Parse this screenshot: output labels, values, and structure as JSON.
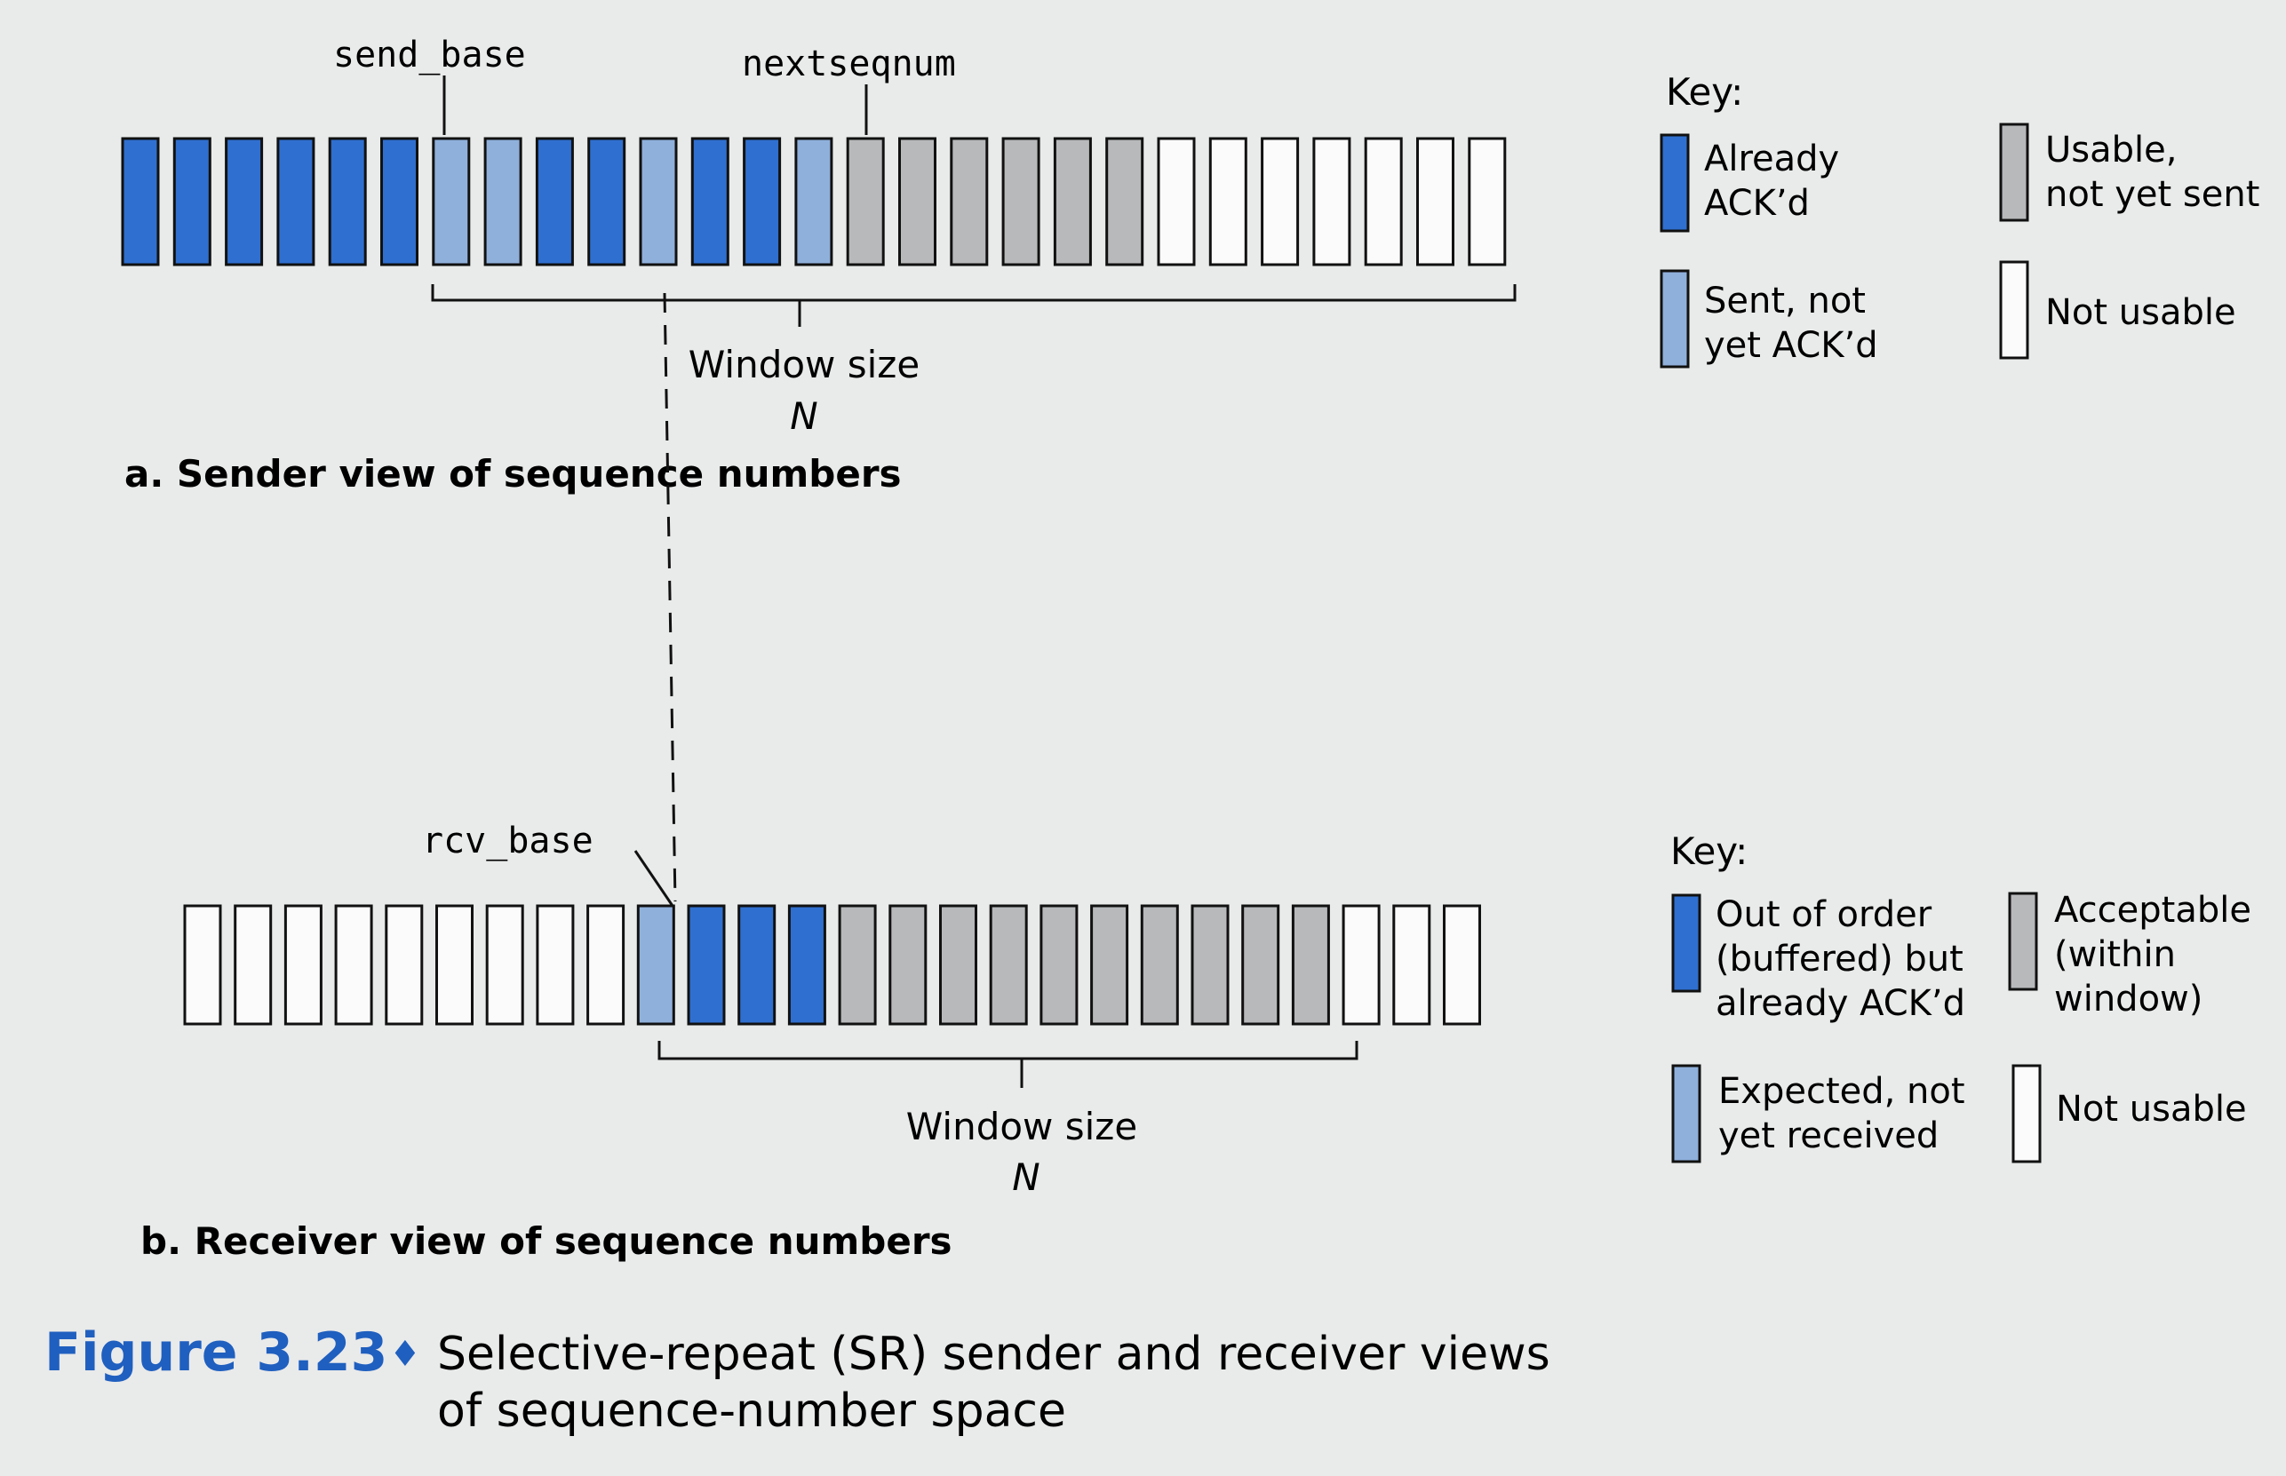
{
  "sender": {
    "labels": {
      "send_base": "send_base",
      "nextseqnum": "nextseqnum"
    },
    "window_label": "Window size",
    "window_symbol": "N",
    "caption": "a. Sender view of sequence numbers",
    "cells": [
      "acked",
      "acked",
      "acked",
      "acked",
      "acked",
      "acked",
      "sent",
      "sent",
      "acked",
      "acked",
      "sent",
      "acked",
      "acked",
      "sent",
      "usable",
      "usable",
      "usable",
      "usable",
      "usable",
      "usable",
      "unusable",
      "unusable",
      "unusable",
      "unusable",
      "unusable",
      "unusable",
      "unusable"
    ],
    "key": {
      "title": "Key:",
      "items": [
        {
          "state": "acked",
          "lines": [
            "Already",
            "ACK’d"
          ]
        },
        {
          "state": "usable",
          "lines": [
            "Usable,",
            "not yet sent"
          ]
        },
        {
          "state": "sent",
          "lines": [
            "Sent, not",
            "yet ACK’d"
          ]
        },
        {
          "state": "unusable",
          "lines": [
            "Not usable"
          ]
        }
      ]
    }
  },
  "receiver": {
    "labels": {
      "rcv_base": "rcv_base"
    },
    "window_label": "Window size",
    "window_symbol": "N",
    "caption": "b. Receiver view of sequence numbers",
    "cells": [
      "unusable",
      "unusable",
      "unusable",
      "unusable",
      "unusable",
      "unusable",
      "unusable",
      "unusable",
      "unusable",
      "expected",
      "buffered",
      "buffered",
      "buffered",
      "acceptable",
      "acceptable",
      "acceptable",
      "acceptable",
      "acceptable",
      "acceptable",
      "acceptable",
      "acceptable",
      "acceptable",
      "acceptable",
      "unusable",
      "unusable",
      "unusable"
    ],
    "key": {
      "title": "Key:",
      "items": [
        {
          "state": "buffered",
          "lines": [
            "Out of order",
            "(buffered) but",
            "already ACK’d"
          ]
        },
        {
          "state": "acceptable",
          "lines": [
            "Acceptable",
            "(within",
            "window)"
          ]
        },
        {
          "state": "expected",
          "lines": [
            "Expected, not",
            "yet received"
          ]
        },
        {
          "state": "unusable",
          "lines": [
            "Not usable"
          ]
        }
      ]
    }
  },
  "figure": {
    "number": "Figure 3.23",
    "bullet": "♦",
    "title_lines": [
      "Selective-repeat (SR) sender and receiver views",
      "of sequence-number space"
    ]
  },
  "colors": {
    "acked": "#2f6fcf",
    "sent": "#8fb0db",
    "usable": "#b7b9bb",
    "unusable": "#fbfbfb",
    "buffered": "#2f6fcf",
    "expected": "#8fb0db",
    "acceptable": "#b7b9bb",
    "figure_number": "#1f5fbf"
  }
}
